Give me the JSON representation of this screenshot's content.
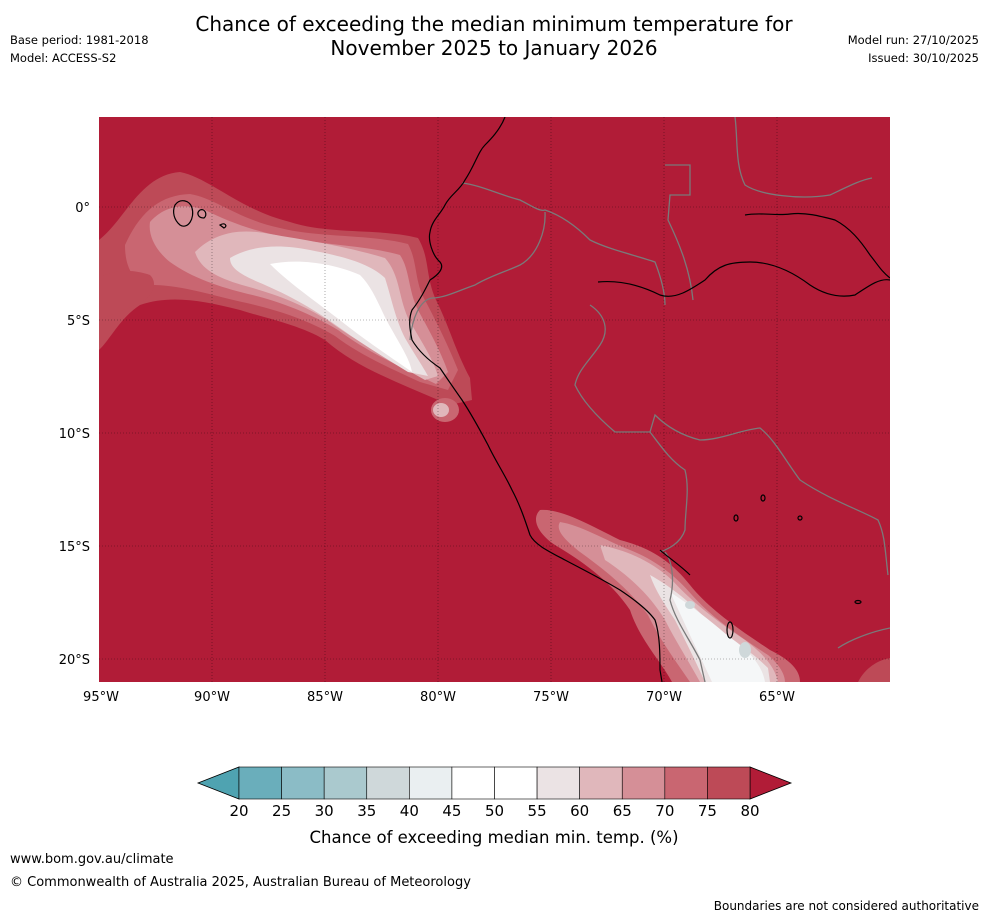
{
  "header": {
    "title_line1": "Chance of exceeding the median minimum temperature for",
    "title_line2": "November 2025 to January 2026",
    "base_period": "Base period: 1981-2018",
    "model": "Model: ACCESS-S2",
    "model_run": "Model run: 27/10/2025",
    "issued": "Issued: 30/10/2025"
  },
  "map": {
    "region": "Western South America / Eastern Pacific",
    "lat_labels": [
      "0°",
      "5°S",
      "10°S",
      "15°S",
      "20°S"
    ],
    "lon_labels": [
      "95°W",
      "90°W",
      "85°W",
      "80°W",
      "75°W",
      "70°W",
      "65°W"
    ],
    "dominant_category": "80+"
  },
  "colorbar": {
    "ticks": [
      "20",
      "25",
      "30",
      "35",
      "40",
      "45",
      "50",
      "55",
      "60",
      "65",
      "70",
      "75",
      "80"
    ],
    "colors": [
      "#4fa3b1",
      "#6aaebb",
      "#8bbcc6",
      "#aac9ce",
      "#cfd8da",
      "#eaeff1",
      "#ffffff",
      "#ffffff",
      "#ebe3e4",
      "#e0b7bb",
      "#d58f97",
      "#c96671",
      "#bd4a57",
      "#b11c37"
    ],
    "label": "Chance of exceeding median min. temp. (%)"
  },
  "footer": {
    "url": "www.bom.gov.au/climate",
    "copyright": "© Commonwealth of Australia 2025, Australian Bureau of Meteorology",
    "disclaimer": "Boundaries are not considered authoritative"
  }
}
